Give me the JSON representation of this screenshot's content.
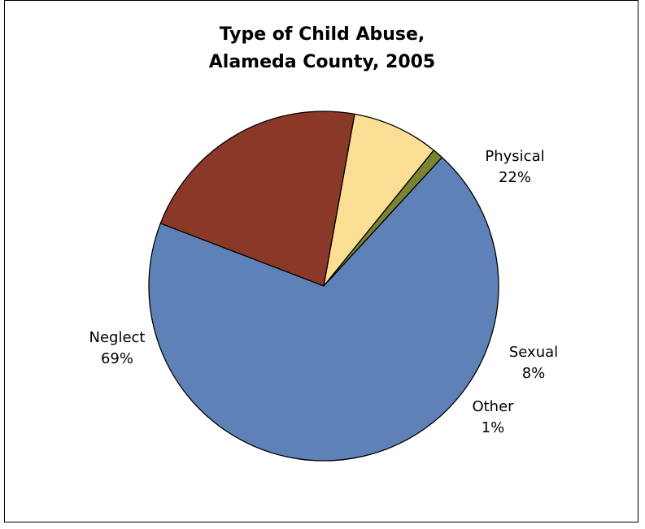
{
  "chart_data": {
    "type": "pie",
    "title_lines": [
      "Type of Child Abuse,",
      "Alameda County, 2005"
    ],
    "slices": [
      {
        "label": "Neglect",
        "value": 69,
        "value_label": "69%",
        "color": "#5E82B8"
      },
      {
        "label": "Physical",
        "value": 22,
        "value_label": "22%",
        "color": "#8A3828"
      },
      {
        "label": "Sexual",
        "value": 8,
        "value_label": "8%",
        "color": "#F9DE93"
      },
      {
        "label": "Other",
        "value": 1,
        "value_label": "1%",
        "color": "#7B8433"
      }
    ],
    "legend": "none",
    "outline_color": "#000000"
  }
}
